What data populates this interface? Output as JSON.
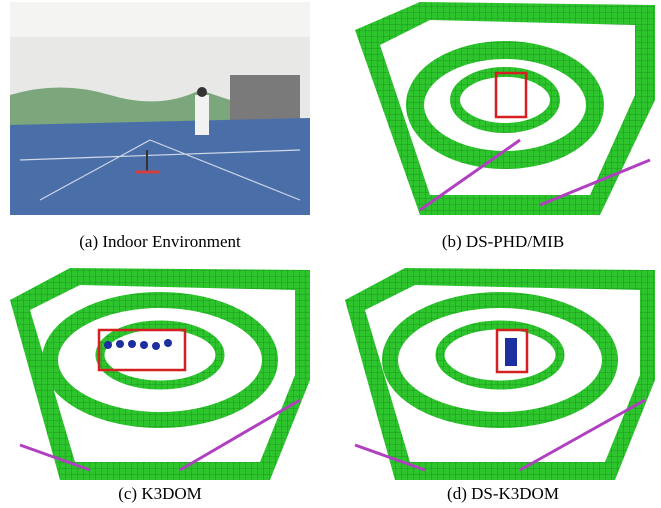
{
  "figure": {
    "panels": [
      {
        "caption": "(a) Indoor Environment"
      },
      {
        "caption": "(b) DS-PHD/MIB"
      },
      {
        "caption": "(c) K3DOM"
      },
      {
        "caption": "(d) DS-K3DOM"
      }
    ]
  }
}
